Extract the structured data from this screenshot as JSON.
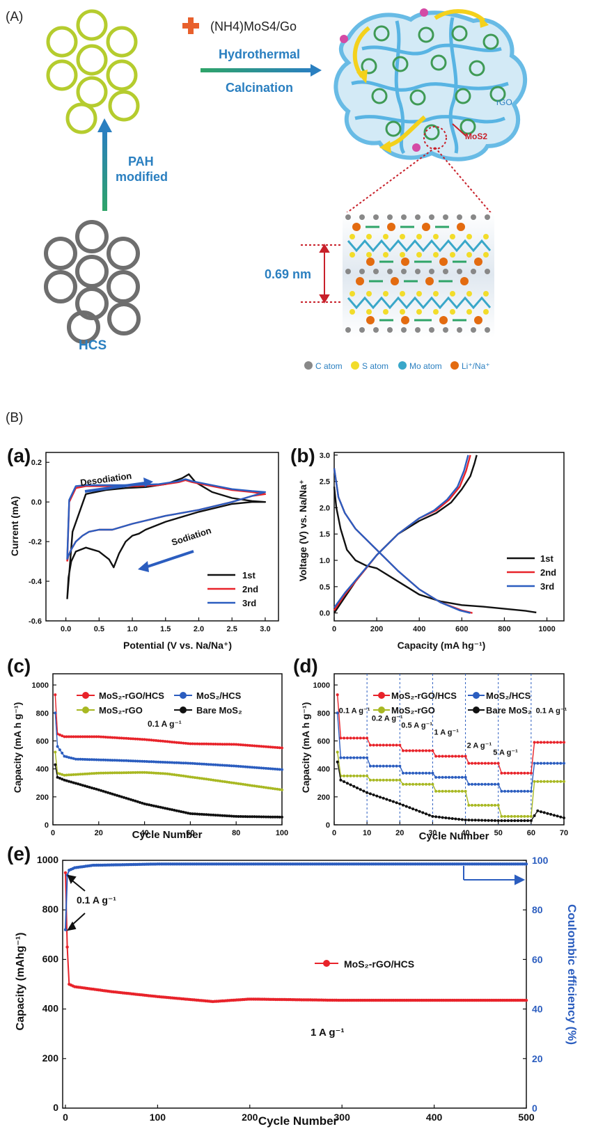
{
  "panelA": {
    "label": "(A)",
    "reagent": "(NH4)MoS4/Go",
    "step1": "Hydrothermal",
    "step2": "Calcination",
    "pah1": "PAH",
    "pah2": "modified",
    "hcs": "HCS",
    "rgo": "rGO",
    "mos2": "MoS2",
    "spacing": "0.69 nm",
    "legend": [
      "C atom",
      "S atom",
      "Mo atom",
      "Li⁺/Na⁺"
    ],
    "colors": {
      "hcs_green": "#b5cc2e",
      "ring_green": "#3f9a55",
      "graphene_blue": "#58b4e3",
      "arrow_blue": "#2a7fc0",
      "plus_orange": "#e8602c",
      "red": "#c8202a",
      "c_atom": "#888888",
      "s_atom": "#f2dc2a",
      "mo_atom": "#39a7c9",
      "li_atom": "#e36b10"
    }
  },
  "panelB": {
    "label": "(B)"
  },
  "colors": {
    "red": "#e8232a",
    "blue": "#2b5dbf",
    "olive": "#a8b822",
    "black": "#111111"
  },
  "chart_data": [
    {
      "id": "a",
      "panel_label": "(a)",
      "type": "line",
      "xlabel": "Potential (V vs. Na/Na⁺)",
      "ylabel": "Current (mA)",
      "xlim": [
        -0.3,
        3.2
      ],
      "ylim": [
        -0.6,
        0.25
      ],
      "xticks": [
        0.0,
        0.5,
        1.0,
        1.5,
        2.0,
        2.5,
        3.0
      ],
      "yticks": [
        -0.6,
        -0.4,
        -0.2,
        0.0,
        0.2
      ],
      "annotations": [
        "Desodiation",
        "Sodiation"
      ],
      "legend": [
        "1st",
        "2nd",
        "3rd"
      ],
      "series": [
        {
          "name": "1st",
          "color": "#111111",
          "x": [
            0.02,
            0.1,
            0.3,
            0.6,
            0.9,
            1.2,
            1.5,
            1.75,
            1.85,
            1.95,
            2.2,
            2.5,
            2.8,
            3.0,
            3.0,
            2.8,
            2.5,
            2.0,
            1.5,
            1.2,
            1.1,
            1.0,
            0.9,
            0.8,
            0.72,
            0.65,
            0.5,
            0.3,
            0.15,
            0.08,
            0.04,
            0.02
          ],
          "y": [
            -0.49,
            -0.15,
            0.04,
            0.06,
            0.07,
            0.075,
            0.09,
            0.12,
            0.14,
            0.1,
            0.05,
            0.02,
            0.005,
            0.0,
            0.0,
            0.0,
            -0.01,
            -0.05,
            -0.1,
            -0.14,
            -0.16,
            -0.17,
            -0.2,
            -0.26,
            -0.33,
            -0.29,
            -0.25,
            -0.23,
            -0.25,
            -0.3,
            -0.38,
            -0.49
          ]
        },
        {
          "name": "2nd",
          "color": "#e8232a",
          "x": [
            0.02,
            0.05,
            0.15,
            0.3,
            0.6,
            1.0,
            1.4,
            1.7,
            1.8,
            1.9,
            2.2,
            2.5,
            2.8,
            3.0,
            3.0,
            2.8,
            2.5,
            2.0,
            1.5,
            1.0,
            0.7,
            0.5,
            0.35,
            0.25,
            0.15,
            0.08,
            0.04,
            0.02
          ],
          "y": [
            -0.3,
            0.0,
            0.07,
            0.08,
            0.08,
            0.08,
            0.085,
            0.1,
            0.11,
            0.1,
            0.08,
            0.06,
            0.05,
            0.04,
            0.04,
            0.03,
            0.0,
            -0.04,
            -0.07,
            -0.11,
            -0.14,
            -0.14,
            -0.15,
            -0.17,
            -0.2,
            -0.24,
            -0.27,
            -0.3
          ]
        },
        {
          "name": "3rd",
          "color": "#2b5dbf",
          "x": [
            0.02,
            0.05,
            0.15,
            0.3,
            0.6,
            1.0,
            1.4,
            1.7,
            1.8,
            1.9,
            2.2,
            2.5,
            2.8,
            3.0,
            3.0,
            2.8,
            2.5,
            2.0,
            1.5,
            1.0,
            0.7,
            0.5,
            0.35,
            0.25,
            0.15,
            0.08,
            0.04,
            0.02
          ],
          "y": [
            -0.29,
            0.01,
            0.08,
            0.085,
            0.085,
            0.085,
            0.09,
            0.105,
            0.115,
            0.105,
            0.085,
            0.065,
            0.055,
            0.05,
            0.05,
            0.03,
            0.0,
            -0.04,
            -0.07,
            -0.11,
            -0.14,
            -0.14,
            -0.15,
            -0.17,
            -0.2,
            -0.24,
            -0.27,
            -0.29
          ]
        }
      ]
    },
    {
      "id": "b",
      "panel_label": "(b)",
      "type": "line",
      "xlabel": "Capacity (mA hg⁻¹)",
      "ylabel": "Voltage (V) vs. Na/Na⁺",
      "xlim": [
        0,
        1080
      ],
      "ylim": [
        -0.15,
        3.05
      ],
      "xticks": [
        0,
        200,
        400,
        600,
        800,
        1000
      ],
      "yticks": [
        0.0,
        0.5,
        1.0,
        1.5,
        2.0,
        2.5,
        3.0
      ],
      "legend": [
        "1st",
        "2nd",
        "3rd"
      ],
      "series": [
        {
          "name": "1st",
          "color": "#111111",
          "x": [
            0,
            10,
            30,
            60,
            100,
            150,
            200,
            300,
            400,
            500,
            600,
            700,
            800,
            900,
            950
          ],
          "y": [
            2.4,
            2.0,
            1.6,
            1.2,
            1.0,
            0.9,
            0.85,
            0.6,
            0.35,
            0.22,
            0.15,
            0.12,
            0.08,
            0.04,
            0.01
          ]
        },
        {
          "name": "1st",
          "color": "#111111",
          "x": [
            0,
            50,
            100,
            200,
            300,
            400,
            480,
            550,
            600,
            640,
            660,
            670
          ],
          "y": [
            0.0,
            0.3,
            0.6,
            1.1,
            1.5,
            1.75,
            1.9,
            2.1,
            2.35,
            2.6,
            2.85,
            3.0
          ]
        },
        {
          "name": "2nd",
          "color": "#e8232a",
          "x": [
            0,
            20,
            50,
            100,
            200,
            300,
            400,
            500,
            600,
            650
          ],
          "y": [
            2.75,
            2.2,
            1.9,
            1.6,
            1.2,
            0.8,
            0.45,
            0.2,
            0.05,
            0.0
          ]
        },
        {
          "name": "2nd",
          "color": "#e8232a",
          "x": [
            0,
            50,
            100,
            200,
            300,
            400,
            480,
            540,
            590,
            620,
            640
          ],
          "y": [
            0.05,
            0.35,
            0.6,
            1.1,
            1.5,
            1.8,
            1.95,
            2.15,
            2.4,
            2.7,
            3.0
          ]
        },
        {
          "name": "3rd",
          "color": "#2b5dbf",
          "x": [
            0,
            20,
            50,
            100,
            200,
            300,
            400,
            500,
            590,
            640
          ],
          "y": [
            2.75,
            2.2,
            1.9,
            1.6,
            1.2,
            0.8,
            0.45,
            0.2,
            0.05,
            0.0
          ]
        },
        {
          "name": "3rd",
          "color": "#2b5dbf",
          "x": [
            0,
            50,
            100,
            200,
            300,
            400,
            470,
            530,
            580,
            610,
            630
          ],
          "y": [
            0.1,
            0.38,
            0.62,
            1.1,
            1.5,
            1.8,
            1.95,
            2.15,
            2.4,
            2.7,
            3.0
          ]
        }
      ]
    },
    {
      "id": "c",
      "panel_label": "(c)",
      "type": "scatter",
      "xlabel": "Cycle Number",
      "ylabel": "Capacity (mA h g⁻¹)",
      "xlim": [
        0,
        100
      ],
      "ylim": [
        0,
        1080
      ],
      "xticks": [
        0,
        20,
        40,
        60,
        80,
        100
      ],
      "yticks": [
        0,
        200,
        400,
        600,
        800,
        1000
      ],
      "annotations": [
        "0.1 A g⁻¹"
      ],
      "legend": [
        "MoS₂-rGO/HCS",
        "MoS₂/HCS",
        "MoS₂-rGO",
        "Bare MoS₂"
      ],
      "series": [
        {
          "name": "MoS₂-rGO/HCS",
          "color": "#e8232a",
          "first": 930,
          "kx": [
            2,
            5,
            20,
            40,
            60,
            80,
            100
          ],
          "ky": [
            650,
            630,
            630,
            610,
            580,
            575,
            550
          ]
        },
        {
          "name": "MoS₂/HCS",
          "color": "#2b5dbf",
          "first": 800,
          "kx": [
            2,
            5,
            10,
            30,
            60,
            80,
            100
          ],
          "ky": [
            560,
            490,
            470,
            460,
            440,
            420,
            395
          ]
        },
        {
          "name": "MoS₂-rGO",
          "color": "#a8b822",
          "first": 520,
          "kx": [
            2,
            5,
            20,
            40,
            50,
            70,
            100
          ],
          "ky": [
            370,
            355,
            370,
            375,
            365,
            320,
            250
          ]
        },
        {
          "name": "Bare MoS₂",
          "color": "#111111",
          "first": 430,
          "kx": [
            2,
            5,
            20,
            40,
            60,
            80,
            100
          ],
          "ky": [
            340,
            320,
            250,
            150,
            80,
            60,
            55
          ]
        }
      ]
    },
    {
      "id": "d",
      "panel_label": "(d)",
      "type": "scatter",
      "xlabel": "Cycle Number",
      "ylabel": "Capacity (mA h g⁻¹)",
      "xlim": [
        0,
        70
      ],
      "ylim": [
        0,
        1080
      ],
      "xticks": [
        0,
        10,
        20,
        30,
        40,
        50,
        60,
        70
      ],
      "yticks": [
        0,
        200,
        400,
        600,
        800,
        1000
      ],
      "xtick_labels": [
        "0",
        "10",
        "20",
        "30",
        "40",
        "50",
        "60",
        "70"
      ],
      "rate_labels": [
        "0.1 A g⁻¹",
        "0.2 A g⁻¹",
        "0.5 A g⁻¹",
        "1 A g⁻¹",
        "2 A g⁻¹",
        "5 A g⁻¹",
        "0.1 A g⁻¹"
      ],
      "legend": [
        "MoS₂-rGO/HCS",
        "MoS₂/HCS",
        "MoS₂-rGO",
        "Bare MoS₂"
      ],
      "series": [
        {
          "name": "MoS₂-rGO/HCS",
          "color": "#e8232a",
          "first": 930,
          "steps": [
            620,
            570,
            530,
            490,
            440,
            370,
            590
          ]
        },
        {
          "name": "MoS₂/HCS",
          "color": "#2b5dbf",
          "first": 800,
          "steps": [
            480,
            420,
            370,
            340,
            290,
            240,
            440
          ]
        },
        {
          "name": "MoS₂-rGO",
          "color": "#a8b822",
          "first": 520,
          "steps": [
            350,
            320,
            290,
            240,
            140,
            60,
            310
          ]
        },
        {
          "name": "Bare MoS₂",
          "color": "#111111",
          "first": 450,
          "kx": [
            2,
            10,
            20,
            30,
            40,
            50,
            60,
            62,
            70
          ],
          "ky": [
            320,
            230,
            150,
            60,
            35,
            30,
            30,
            100,
            50
          ]
        }
      ]
    },
    {
      "id": "e",
      "panel_label": "(e)",
      "type": "scatter",
      "xlabel": "Cycle Number",
      "ylabel": "Capacity (mAhg⁻¹)",
      "y2label": "Coulombic efficiency (%)",
      "xlim": [
        -3,
        500
      ],
      "ylim": [
        0,
        1000
      ],
      "y2lim": [
        0,
        100
      ],
      "xticks": [
        0,
        100,
        200,
        300,
        400,
        500
      ],
      "yticks": [
        0,
        200,
        400,
        600,
        800,
        1000
      ],
      "y2ticks": [
        0,
        20,
        40,
        60,
        80,
        100
      ],
      "annotations": [
        "0.1 A g⁻¹",
        "1 A g⁻¹"
      ],
      "legend": [
        "MoS₂-rGO/HCS"
      ],
      "series": [
        {
          "name": "MoS₂-rGO/HCS",
          "color": "#e8232a",
          "kx": [
            0,
            1,
            2,
            3,
            4,
            10,
            50,
            100,
            160,
            200,
            300,
            400,
            500
          ],
          "ky": [
            950,
            700,
            650,
            520,
            500,
            490,
            470,
            450,
            430,
            440,
            435,
            435,
            435
          ]
        },
        {
          "name": "Coulombic efficiency",
          "color": "#2b5dbf",
          "axis": "y2",
          "kx": [
            0,
            1,
            2,
            4,
            10,
            30,
            100,
            500
          ],
          "ky": [
            72,
            90,
            94,
            96,
            97,
            98,
            98.5,
            98.5
          ]
        }
      ]
    }
  ]
}
